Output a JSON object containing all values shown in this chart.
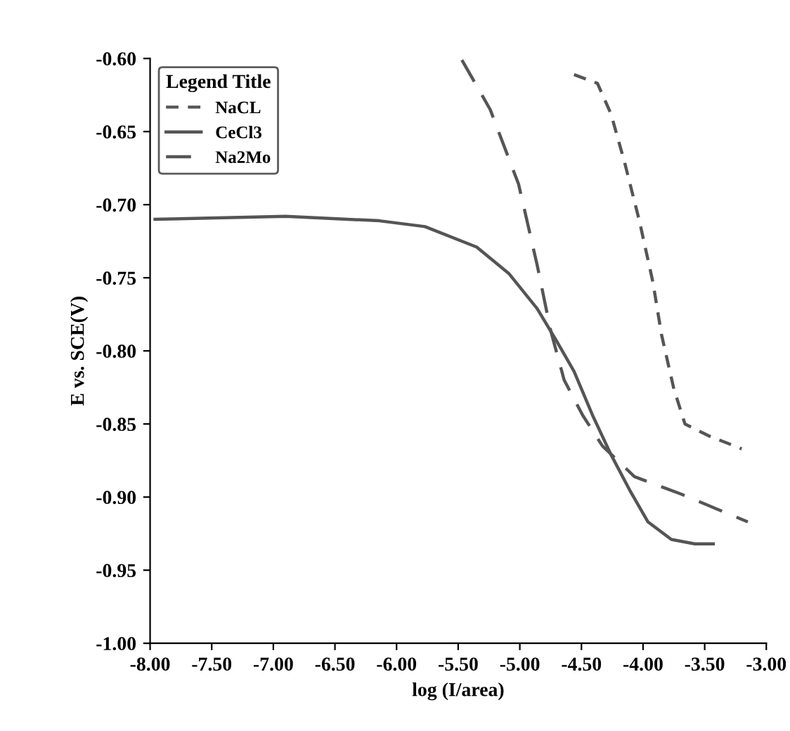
{
  "chart_data": {
    "type": "line",
    "xlabel": "log (I/area)",
    "ylabel": "E vs. SCE(V)",
    "legend_title": "Legend Title",
    "legend": "top left",
    "grid": false,
    "marker": "none",
    "xlim": [
      -8.0,
      -3.0
    ],
    "ylim": [
      -1.0,
      -0.6
    ],
    "xticks": [
      {
        "value": -8.0,
        "label": "-8.00"
      },
      {
        "value": -7.5,
        "label": "-7.50"
      },
      {
        "value": -7.0,
        "label": "-7.00"
      },
      {
        "value": -6.5,
        "label": "-6.50"
      },
      {
        "value": -6.0,
        "label": "-6.00"
      },
      {
        "value": -5.5,
        "label": "-5.50"
      },
      {
        "value": -5.0,
        "label": "-5.00"
      },
      {
        "value": -4.5,
        "label": "-4.50"
      },
      {
        "value": -4.0,
        "label": "-4.00"
      },
      {
        "value": -3.5,
        "label": "-3.50"
      },
      {
        "value": -3.0,
        "label": "-3.00"
      }
    ],
    "yticks": [
      {
        "value": -1.0,
        "label": "-1.00"
      },
      {
        "value": -0.95,
        "label": "-0.95"
      },
      {
        "value": -0.9,
        "label": "-0.90"
      },
      {
        "value": -0.85,
        "label": "-0.85"
      },
      {
        "value": -0.8,
        "label": "-0.80"
      },
      {
        "value": -0.75,
        "label": "-0.75"
      },
      {
        "value": -0.7,
        "label": "-0.70"
      },
      {
        "value": -0.65,
        "label": "-0.65"
      },
      {
        "value": -0.6,
        "label": "-0.60"
      }
    ],
    "series": [
      {
        "name": "NaCL",
        "color": "#555555",
        "line_style": "dashed",
        "x": [
          -4.56,
          -4.37,
          -4.26,
          -4.15,
          -4.03,
          -3.92,
          -3.85,
          -3.75,
          -3.66,
          -3.47,
          -3.2
        ],
        "values": [
          -0.611,
          -0.617,
          -0.638,
          -0.671,
          -0.711,
          -0.753,
          -0.789,
          -0.826,
          -0.85,
          -0.858,
          -0.867
        ]
      },
      {
        "name": "CeCl3",
        "color": "#555555",
        "line_style": "solid",
        "x": [
          -7.96,
          -6.9,
          -6.14,
          -5.77,
          -5.35,
          -5.09,
          -4.86,
          -4.71,
          -4.56,
          -4.41,
          -4.26,
          -4.11,
          -3.96,
          -3.77,
          -3.58,
          -3.43
        ],
        "values": [
          -0.71,
          -0.708,
          -0.711,
          -0.715,
          -0.729,
          -0.747,
          -0.771,
          -0.792,
          -0.814,
          -0.844,
          -0.871,
          -0.895,
          -0.917,
          -0.929,
          -0.932,
          -0.932
        ]
      },
      {
        "name": "Na2Mo",
        "color": "#555555",
        "line_style": "longdash",
        "x": [
          -5.47,
          -5.24,
          -5.01,
          -4.86,
          -4.75,
          -4.64,
          -4.49,
          -4.33,
          -4.07,
          -3.69,
          -3.15
        ],
        "values": [
          -0.601,
          -0.635,
          -0.686,
          -0.741,
          -0.786,
          -0.82,
          -0.844,
          -0.865,
          -0.886,
          -0.898,
          -0.917
        ]
      }
    ]
  }
}
